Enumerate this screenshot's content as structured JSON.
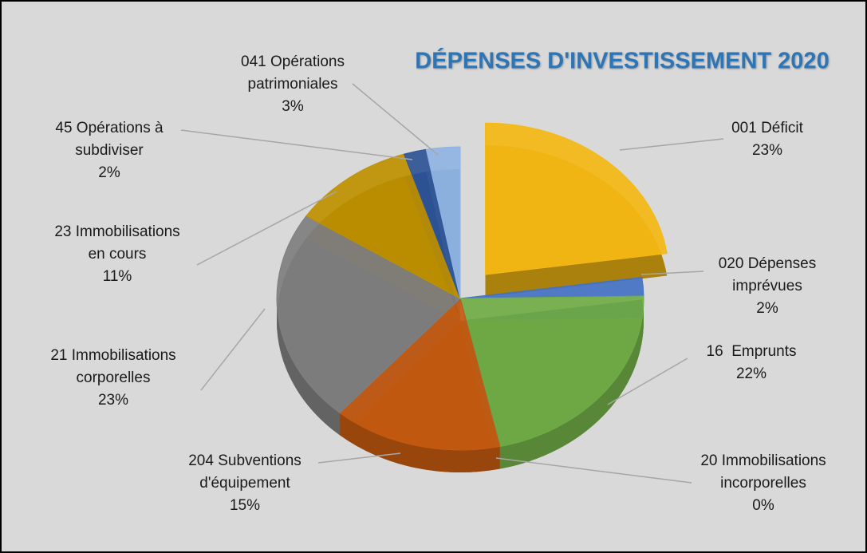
{
  "chart_data": {
    "type": "pie",
    "title": "DÉPENSES D'INVESTISSEMENT 2020",
    "categories": [
      "001 Déficit",
      "020 Dépenses imprévues",
      "16  Emprunts",
      "20 Immobilisations incorporelles",
      "204 Subventions d'équipement",
      "21 Immobilisations corporelles",
      "23 Immobilisations en cours",
      "45 Opérations à subdiviser",
      "041 Opérations patrimoniales"
    ],
    "values": [
      23,
      2,
      22,
      0,
      15,
      23,
      11,
      2,
      3
    ],
    "value_labels": [
      "23%",
      "2%",
      "22%",
      "0%",
      "15%",
      "23%",
      "11%",
      "2%",
      "3%"
    ],
    "colors": [
      "#f5b914",
      "#4472c4",
      "#70ad47",
      "#2e6db0",
      "#c55a11",
      "#7f7f7f",
      "#bf9000",
      "#2f5597",
      "#8fb4e3"
    ]
  }
}
